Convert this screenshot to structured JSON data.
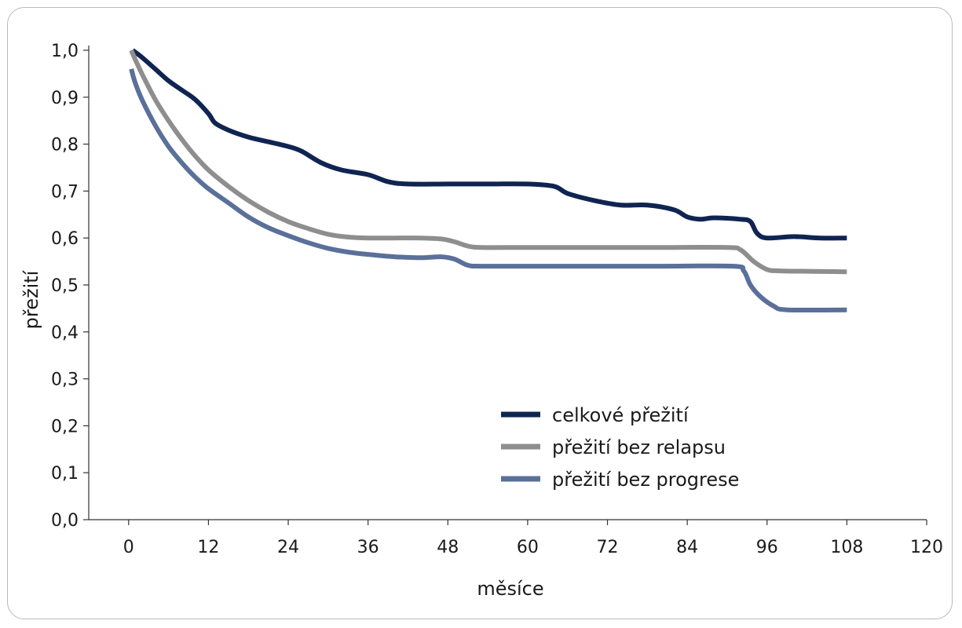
{
  "chart_data": {
    "type": "line",
    "xlabel": "měsíce",
    "ylabel": "přežití",
    "xlim": [
      -6,
      120
    ],
    "ylim": [
      0,
      1.0
    ],
    "x_ticks": [
      0,
      12,
      24,
      36,
      48,
      60,
      72,
      84,
      96,
      108,
      120
    ],
    "x_tick_labels": [
      "0",
      "12",
      "24",
      "36",
      "48",
      "60",
      "72",
      "84",
      "96",
      "108",
      "120"
    ],
    "y_ticks": [
      0.0,
      0.1,
      0.2,
      0.3,
      0.4,
      0.5,
      0.6,
      0.7,
      0.8,
      0.9,
      1.0
    ],
    "y_tick_labels": [
      "0,0",
      "0,1",
      "0,2",
      "0,3",
      "0,4",
      "0,5",
      "0,6",
      "0,7",
      "0,8",
      "0,9",
      "1,0"
    ],
    "grid": false,
    "legend_position": "bottom-right",
    "series": [
      {
        "name": "celkové přežití",
        "color": "#0f2451",
        "points": [
          [
            0.6,
            1.0
          ],
          [
            2,
            0.985
          ],
          [
            4,
            0.96
          ],
          [
            6,
            0.935
          ],
          [
            8,
            0.915
          ],
          [
            10,
            0.895
          ],
          [
            12,
            0.865
          ],
          [
            13,
            0.845
          ],
          [
            15,
            0.83
          ],
          [
            18,
            0.815
          ],
          [
            21,
            0.805
          ],
          [
            24,
            0.795
          ],
          [
            26,
            0.785
          ],
          [
            29,
            0.76
          ],
          [
            32,
            0.745
          ],
          [
            36,
            0.735
          ],
          [
            39,
            0.72
          ],
          [
            42,
            0.715
          ],
          [
            48,
            0.715
          ],
          [
            54,
            0.715
          ],
          [
            60,
            0.715
          ],
          [
            64,
            0.71
          ],
          [
            66,
            0.695
          ],
          [
            70,
            0.68
          ],
          [
            74,
            0.67
          ],
          [
            78,
            0.67
          ],
          [
            82,
            0.66
          ],
          [
            84,
            0.645
          ],
          [
            86,
            0.64
          ],
          [
            88,
            0.643
          ],
          [
            92,
            0.64
          ],
          [
            93.5,
            0.635
          ],
          [
            94.5,
            0.61
          ],
          [
            96,
            0.6
          ],
          [
            100,
            0.603
          ],
          [
            104,
            0.6
          ],
          [
            108,
            0.6
          ]
        ]
      },
      {
        "name": "přežití bez relapsu",
        "color": "#8e8e8e",
        "points": [
          [
            0.4,
            1.0
          ],
          [
            1,
            0.98
          ],
          [
            2,
            0.95
          ],
          [
            4,
            0.895
          ],
          [
            6,
            0.85
          ],
          [
            8,
            0.81
          ],
          [
            10,
            0.775
          ],
          [
            12,
            0.745
          ],
          [
            15,
            0.71
          ],
          [
            18,
            0.68
          ],
          [
            21,
            0.655
          ],
          [
            24,
            0.635
          ],
          [
            27,
            0.62
          ],
          [
            30,
            0.608
          ],
          [
            33,
            0.602
          ],
          [
            36,
            0.6
          ],
          [
            40,
            0.6
          ],
          [
            44,
            0.6
          ],
          [
            47,
            0.598
          ],
          [
            49,
            0.592
          ],
          [
            51,
            0.583
          ],
          [
            53,
            0.58
          ],
          [
            60,
            0.58
          ],
          [
            70,
            0.58
          ],
          [
            80,
            0.58
          ],
          [
            90,
            0.58
          ],
          [
            92,
            0.575
          ],
          [
            94,
            0.55
          ],
          [
            96,
            0.533
          ],
          [
            98,
            0.53
          ],
          [
            103,
            0.529
          ],
          [
            108,
            0.528
          ]
        ]
      },
      {
        "name": "přežití bez progrese",
        "color": "#5a709a",
        "points": [
          [
            0.4,
            0.96
          ],
          [
            1,
            0.93
          ],
          [
            2,
            0.895
          ],
          [
            4,
            0.84
          ],
          [
            6,
            0.795
          ],
          [
            8,
            0.76
          ],
          [
            10,
            0.73
          ],
          [
            12,
            0.705
          ],
          [
            15,
            0.675
          ],
          [
            18,
            0.645
          ],
          [
            21,
            0.622
          ],
          [
            24,
            0.605
          ],
          [
            27,
            0.59
          ],
          [
            30,
            0.578
          ],
          [
            33,
            0.57
          ],
          [
            36,
            0.565
          ],
          [
            40,
            0.56
          ],
          [
            44,
            0.558
          ],
          [
            47,
            0.56
          ],
          [
            49,
            0.555
          ],
          [
            51,
            0.542
          ],
          [
            53,
            0.54
          ],
          [
            60,
            0.54
          ],
          [
            70,
            0.54
          ],
          [
            80,
            0.54
          ],
          [
            91,
            0.54
          ],
          [
            92.5,
            0.53
          ],
          [
            93.5,
            0.5
          ],
          [
            95,
            0.475
          ],
          [
            97,
            0.455
          ],
          [
            99,
            0.447
          ],
          [
            108,
            0.447
          ]
        ]
      }
    ]
  }
}
